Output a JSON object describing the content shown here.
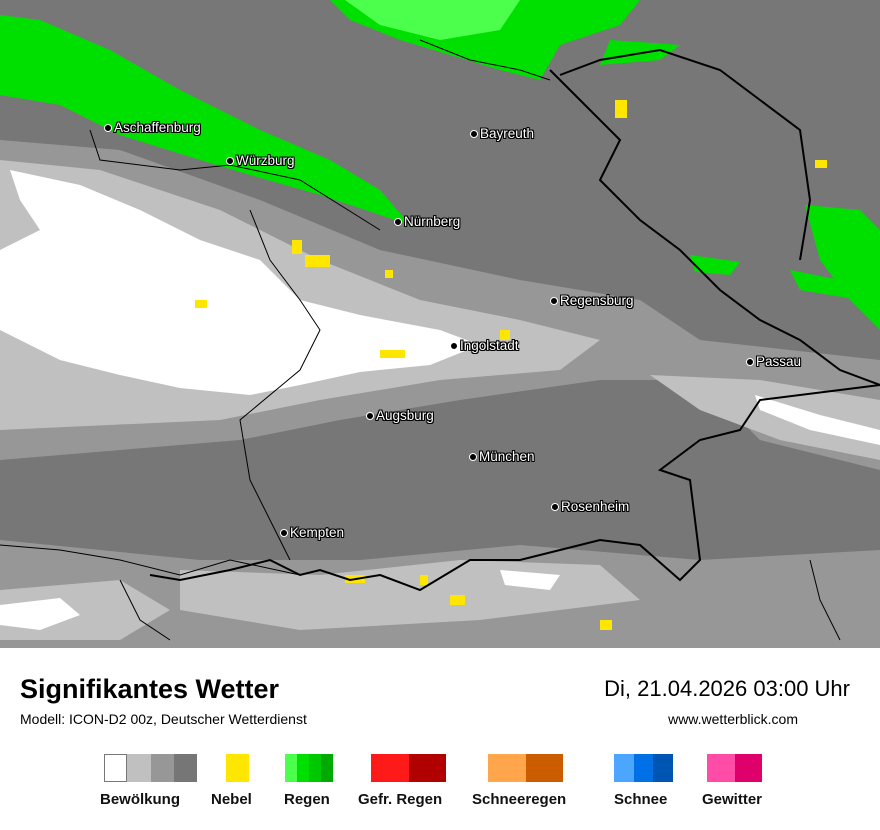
{
  "map": {
    "cities": [
      "Aschaffenburg",
      "Würzburg",
      "Bayreuth",
      "Nürnberg",
      "Regensburg",
      "Ingolstadt",
      "Passau",
      "Augsburg",
      "München",
      "Rosenheim",
      "Kempten"
    ]
  },
  "footer": {
    "title": "Signifikantes Wetter",
    "subtitle": "Modell: ICON-D2 00z, Deutscher Wetterdienst",
    "datetime": "Di, 21.04.2026 03:00 Uhr",
    "website": "www.wetterblick.com"
  },
  "legend": [
    {
      "label": "Bewölkung",
      "colors": [
        "#ffffff",
        "#c0c0c0",
        "#979797",
        "#767676"
      ]
    },
    {
      "label": "Nebel",
      "colors": [
        "#ffe600"
      ]
    },
    {
      "label": "Regen",
      "colors": [
        "#4cff4c",
        "#00e000",
        "#00c800",
        "#00aa00"
      ]
    },
    {
      "label": "Gefr. Regen",
      "colors": [
        "#ff1a1a",
        "#b00000"
      ]
    },
    {
      "label": "Schneeregen",
      "colors": [
        "#ffa54c",
        "#cc5c00"
      ]
    },
    {
      "label": "Schnee",
      "colors": [
        "#4ca6ff",
        "#0070e6",
        "#0055b3"
      ]
    },
    {
      "label": "Gewitter",
      "colors": [
        "#ff4ca6",
        "#e0006c"
      ]
    }
  ]
}
